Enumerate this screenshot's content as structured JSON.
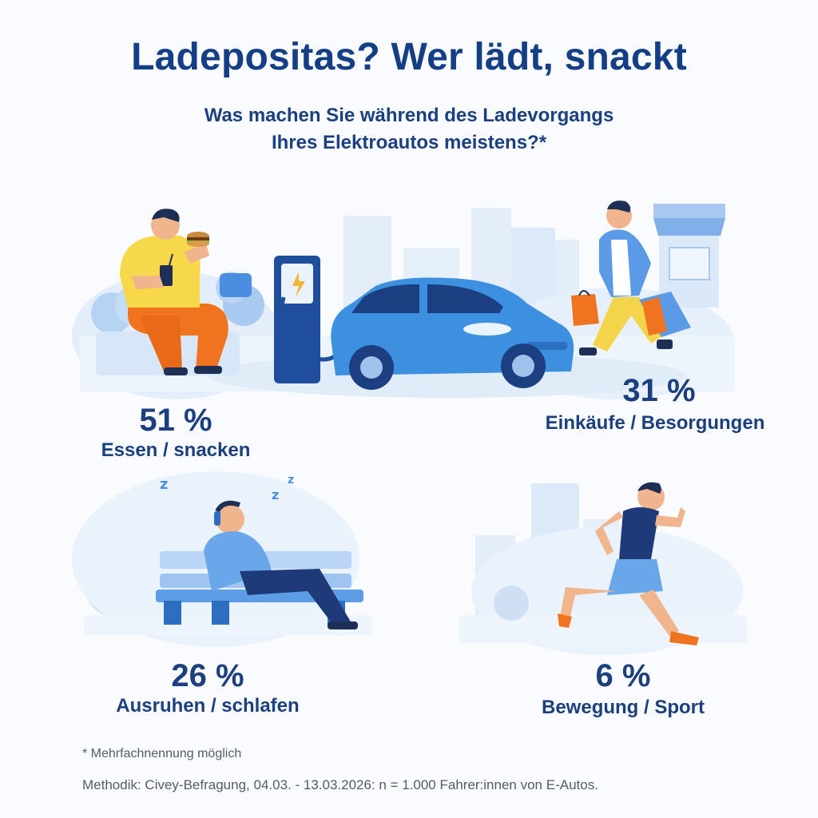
{
  "header": {
    "title": "Ladepositas? Wer lädt, snackt",
    "subtitle_line1": "Was machen Sie während des Ladevorgangs",
    "subtitle_line2": "Ihres Elektroautos meistens?*"
  },
  "results": [
    {
      "value": "51 %",
      "label": "Essen / snacken",
      "icon": "person-eating-burger"
    },
    {
      "value": "31 %",
      "label": "Einkäufe / Besorgungen",
      "icon": "person-carrying-shopping-bags"
    },
    {
      "value": "26 %",
      "label": "Ausruhen / schlafen",
      "icon": "person-sleeping-on-bench"
    },
    {
      "value": "6 %",
      "label": "Bewegung / Sport",
      "icon": "person-running"
    }
  ],
  "sleep_letters": [
    "z",
    "z",
    "z"
  ],
  "footer": {
    "note": "* Mehrfachnennung möglich",
    "methodology": "Methodik: Civey-Befragung, 04.03. - 13.03.2026: n = 1.000 Fahrer:innen von E-Autos."
  },
  "colors": {
    "title": "#143f86",
    "text": "#1c3f7f",
    "car": "#3d8fe0",
    "charger": "#1f4f9c",
    "background_shapes": "#dce9f8"
  }
}
